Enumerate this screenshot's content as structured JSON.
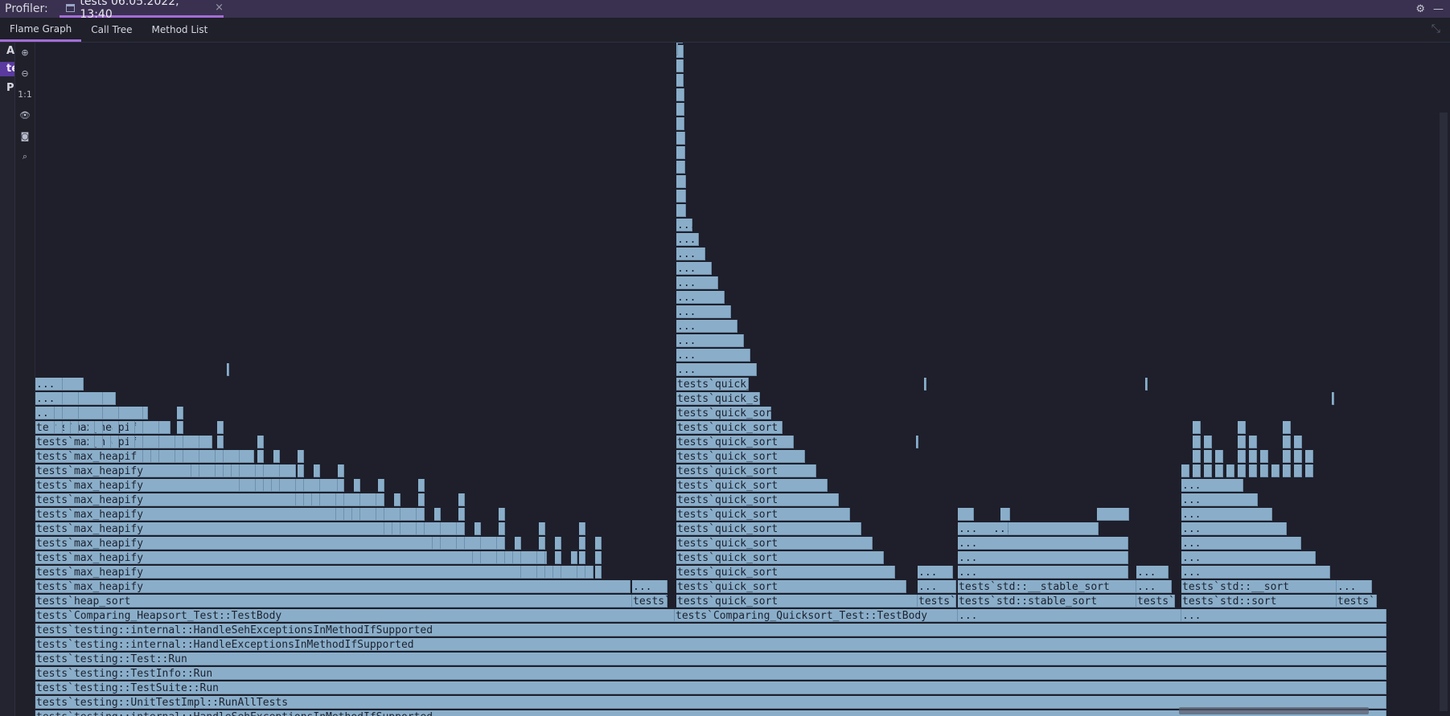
{
  "titlebar": {
    "label": "Profiler:",
    "tab_title": "tests 06.05.2022, 13:40",
    "tab_close": "×",
    "settings_glyph": "⚙",
    "minimize_glyph": "—"
  },
  "view_tabs": [
    {
      "label": "Flame Graph",
      "active": true
    },
    {
      "label": "Call Tree",
      "active": false
    },
    {
      "label": "Method List",
      "active": false
    }
  ],
  "collapse_glyph": "⤡",
  "left_strip": [
    "A",
    "te",
    "P"
  ],
  "tool_icons": [
    {
      "name": "zoom-in-icon",
      "glyph": "⊕"
    },
    {
      "name": "zoom-out-icon",
      "glyph": "⊖"
    },
    {
      "name": "actual-size-icon",
      "glyph": "1:1"
    },
    {
      "name": "eye-icon",
      "glyph": "👁"
    },
    {
      "name": "camera-icon",
      "glyph": "◙"
    },
    {
      "name": "search-icon",
      "glyph": "⌕"
    }
  ],
  "colors": {
    "frame": "#8aaec9",
    "frame_border": "#6e90ad",
    "accent": "#a36dd6",
    "background": "#1e1f2b"
  },
  "flame": {
    "base_stack": [
      "tests`testing::internal::HandleSehExceptionsInMethodIfSupported",
      "tests`testing::UnitTestImpl::RunAllTests",
      "tests`testing::TestSuite::Run",
      "tests`testing::TestInfo::Run",
      "tests`testing::Test::Run",
      "tests`testing::internal::HandleExceptionsInMethodIfSupported",
      "tests`testing::internal::HandleSehExceptionsInMethodIfSupported"
    ],
    "heapsort": {
      "root": "tests`Comparing_Heapsort_Test::TestBody",
      "sort": "tests`heap_sort",
      "sibling": "tests`",
      "recursive": "tests`max_heapify",
      "repeat": 12,
      "ellipsis": "..."
    },
    "quicksort": {
      "root": "tests`Comparing_Quicksort_Test::TestBody",
      "recursive": "tests`quick_sort",
      "repeat": 16,
      "sibling": "tests`",
      "ellipsis": "..."
    },
    "stablesort": {
      "root": "...",
      "sort": "tests`std::stable_sort",
      "inner": "tests`std::__stable_sort",
      "sibling": "tests`",
      "ellipsis": "..."
    },
    "stdsort": {
      "root": "...",
      "sort": "tests`std::sort",
      "inner": "tests`std::__sort",
      "sibling": "tests`",
      "ellipsis": "..."
    }
  }
}
